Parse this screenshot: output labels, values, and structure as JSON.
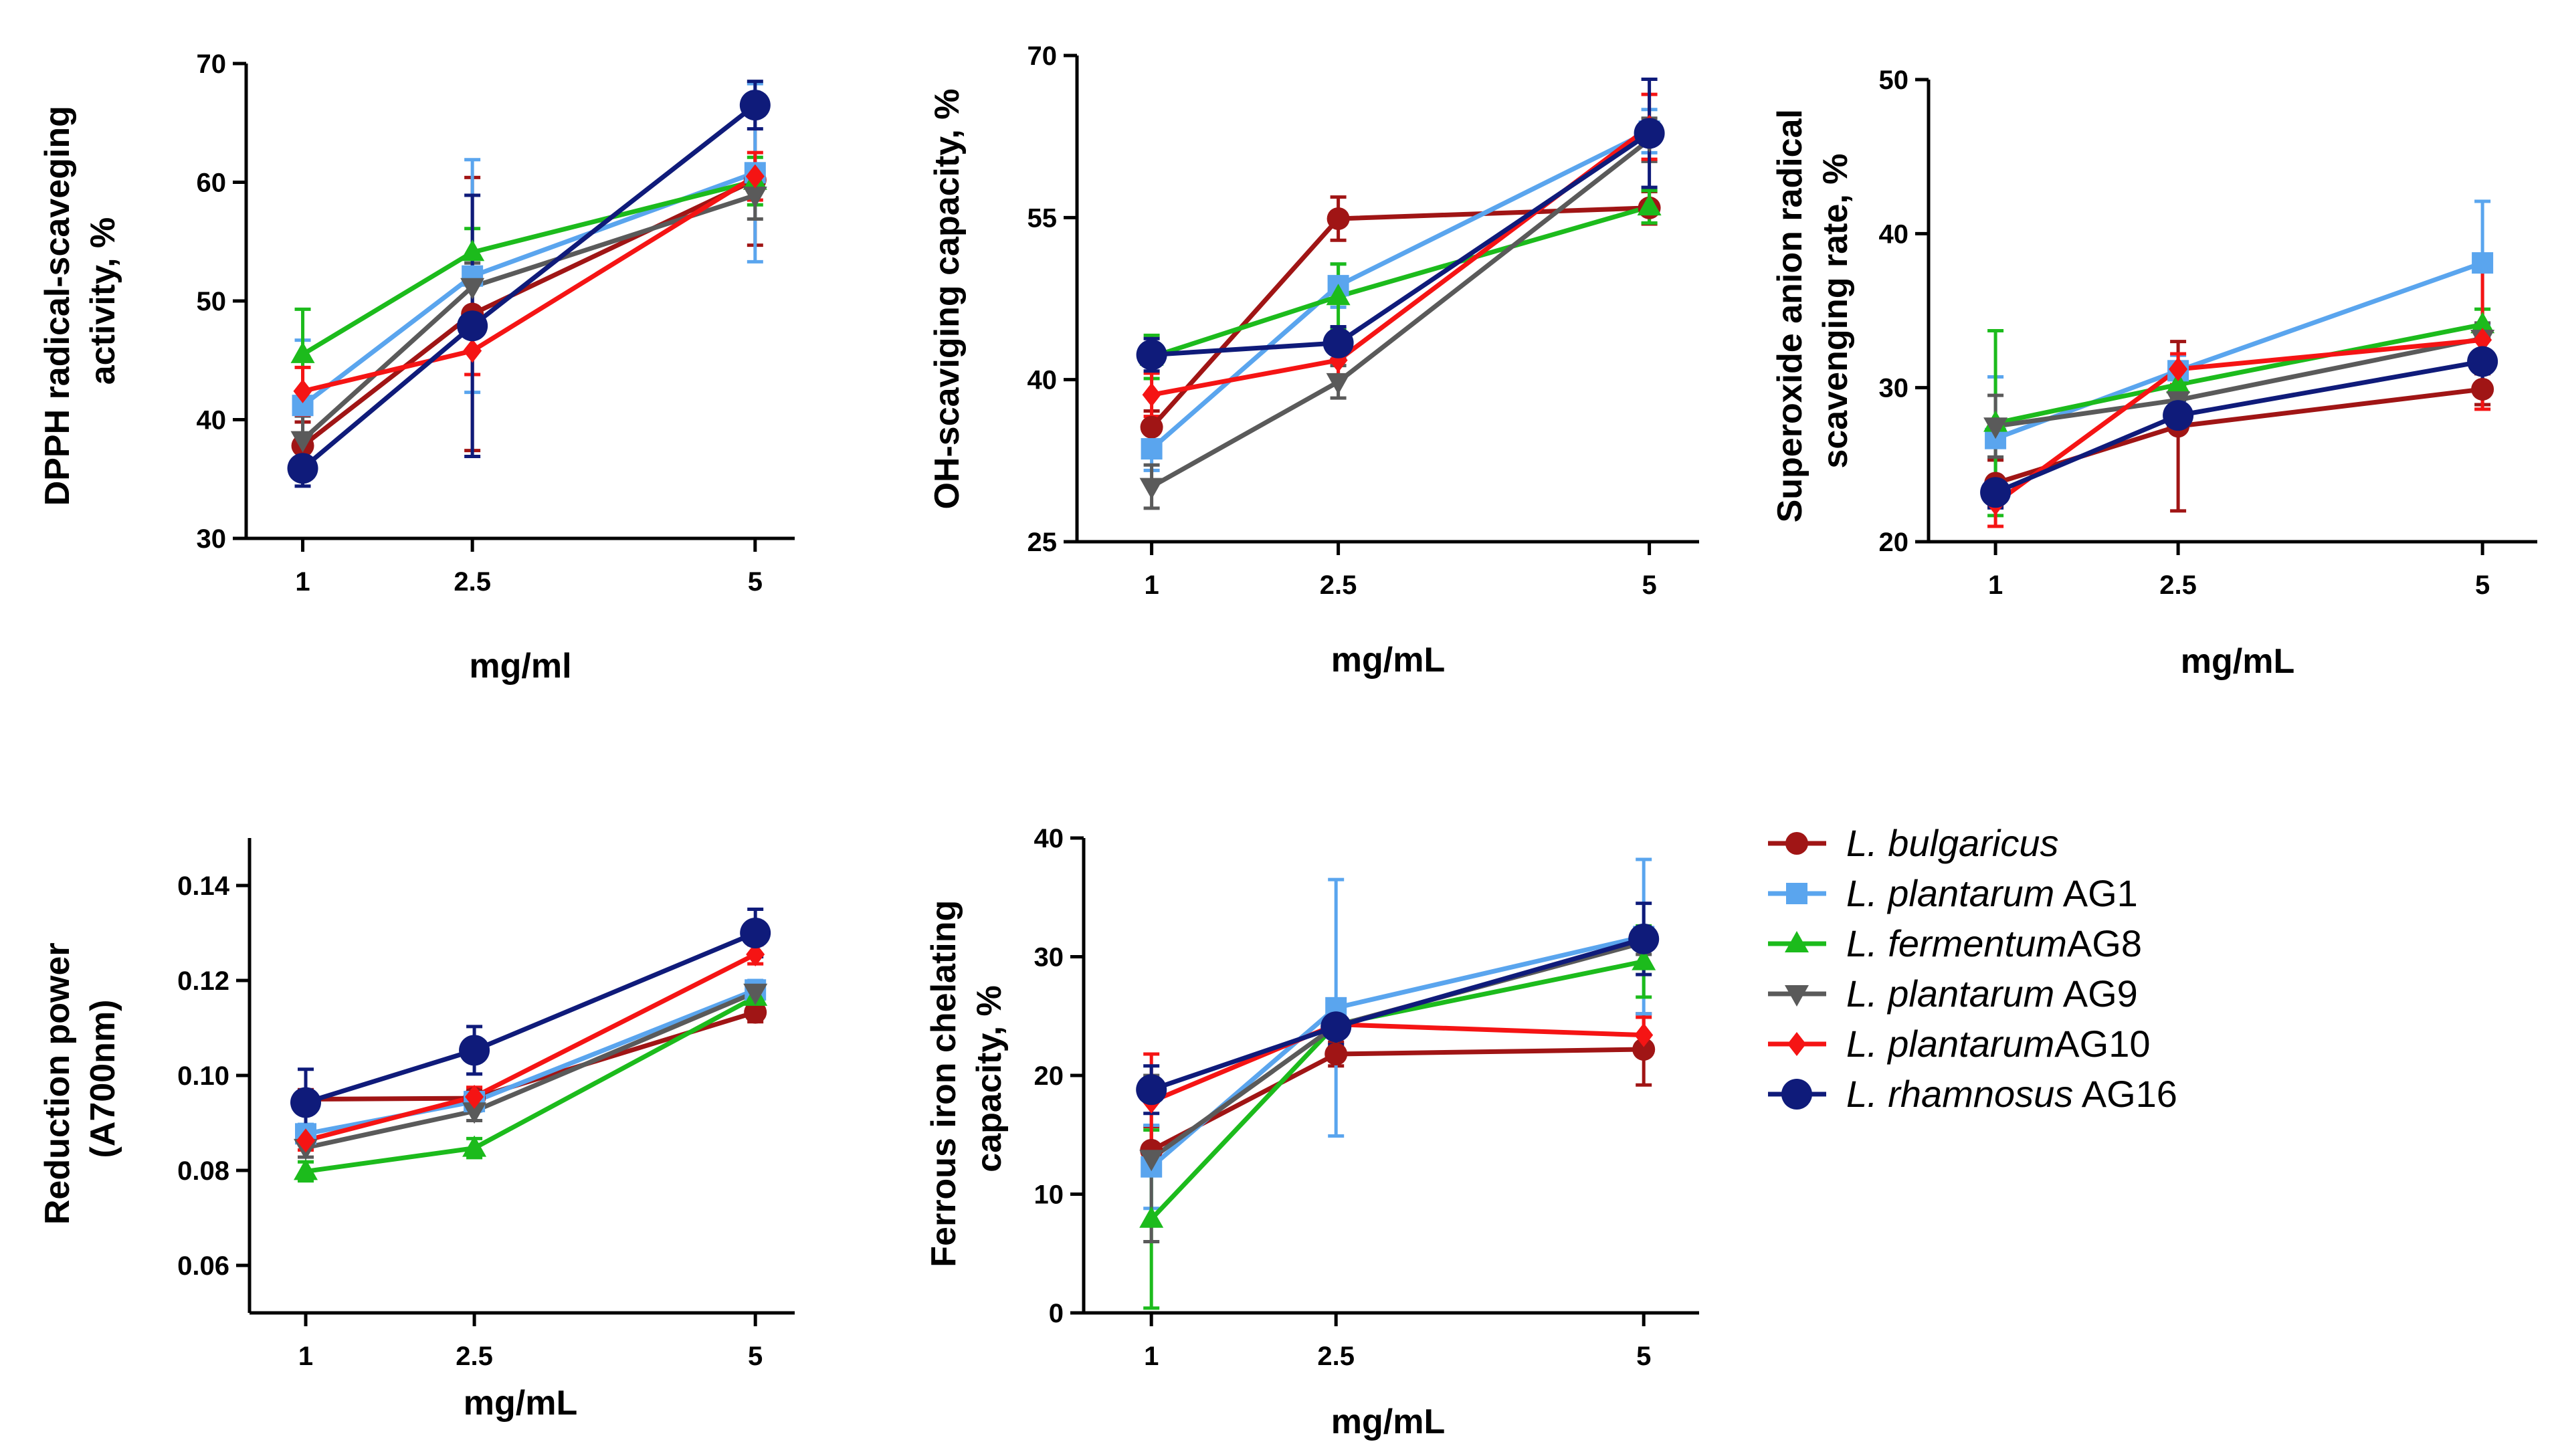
{
  "x_unit_labels": [
    "mg/ml",
    "mg/mL",
    "mg/mL",
    "mg/mL",
    "mg/mL"
  ],
  "legend": [
    {
      "species": "L. bulgaricus",
      "strain": "",
      "color": "#A01515",
      "marker": "circle-small"
    },
    {
      "species": "L. plantarum",
      "strain": " AG1",
      "color": "#5AA5EE",
      "marker": "square"
    },
    {
      "species": "L. fermentum",
      "strain": "AG8",
      "color": "#1CBB1C",
      "marker": "triangle-up"
    },
    {
      "species": "L. plantarum",
      "strain": " AG9",
      "color": "#5A5A5A",
      "marker": "triangle-down"
    },
    {
      "species": "L. plantarum",
      "strain": "AG10",
      "color": "#F51414",
      "marker": "diamond"
    },
    {
      "species": "L. rhamnosus",
      "strain": " AG16",
      "color": "#0F1B7A",
      "marker": "circle-large"
    }
  ],
  "chart_data": [
    {
      "type": "line",
      "title": "",
      "xlabel": "mg/ml",
      "ylabel": [
        "DPPH radical-scaveging",
        "activity, %"
      ],
      "x": [
        1,
        2.5,
        5
      ],
      "x_ticks": [
        "1",
        "2.5",
        "5"
      ],
      "ylim": [
        30,
        70
      ],
      "y_ticks": [
        "30",
        "40",
        "50",
        "60",
        "70"
      ],
      "series": [
        {
          "name": "L. bulgaricus",
          "values": [
            37.8,
            48.9,
            60.2
          ],
          "errors": [
            2.0,
            11.5,
            5.5
          ]
        },
        {
          "name": "L. plantarum AG1",
          "values": [
            41.2,
            52.1,
            60.8
          ],
          "errors": [
            5.5,
            9.8,
            7.5
          ]
        },
        {
          "name": "L. fermentumAG8",
          "values": [
            45.5,
            54.1,
            60.1
          ],
          "errors": [
            3.8,
            2.0,
            2.0
          ]
        },
        {
          "name": "L. plantarum AG9",
          "values": [
            38.3,
            51.2,
            58.9
          ],
          "errors": [
            2.0,
            2.0,
            2.0
          ]
        },
        {
          "name": "L. plantarumAG10",
          "values": [
            42.4,
            45.8,
            60.5
          ],
          "errors": [
            2.0,
            2.0,
            2.0
          ]
        },
        {
          "name": "L. rhamnosus AG16",
          "values": [
            35.9,
            47.9,
            66.5
          ],
          "errors": [
            1.5,
            11.0,
            2.0
          ]
        }
      ]
    },
    {
      "type": "line",
      "title": "",
      "xlabel": "mg/mL",
      "ylabel": [
        "OH-scaviging capacity, %"
      ],
      "x": [
        1,
        2.5,
        5
      ],
      "x_ticks": [
        "1",
        "2.5",
        "5"
      ],
      "ylim": [
        25,
        70
      ],
      "y_ticks": [
        "25",
        "40",
        "55",
        "70"
      ],
      "series": [
        {
          "name": "L. bulgaricus",
          "values": [
            35.6,
            54.9,
            55.9
          ],
          "errors": [
            1.5,
            2.0,
            1.5
          ]
        },
        {
          "name": "L. plantarum AG1",
          "values": [
            33.6,
            48.7,
            63.0
          ],
          "errors": [
            2.0,
            2.0,
            2.0
          ]
        },
        {
          "name": "L. fermentumAG8",
          "values": [
            42.1,
            47.7,
            56.0
          ],
          "errors": [
            2.0,
            3.0,
            1.5
          ]
        },
        {
          "name": "L. plantarum AG9",
          "values": [
            30.1,
            39.8,
            62.2
          ],
          "errors": [
            2.0,
            1.5,
            2.0
          ]
        },
        {
          "name": "L. plantarumAG10",
          "values": [
            38.6,
            41.8,
            63.4
          ],
          "errors": [
            2.0,
            1.5,
            3.0
          ]
        },
        {
          "name": "L. rhamnosus AG16",
          "values": [
            42.3,
            43.4,
            62.8
          ],
          "errors": [
            1.5,
            1.5,
            5.0
          ]
        }
      ]
    },
    {
      "type": "line",
      "title": "",
      "xlabel": "mg/mL",
      "ylabel": [
        "Superoxide anion radical",
        "scavenging rate, %"
      ],
      "x": [
        1,
        2.5,
        5
      ],
      "x_ticks": [
        "1",
        "2.5",
        "5"
      ],
      "ylim": [
        20,
        50
      ],
      "y_ticks": [
        "20",
        "30",
        "40",
        "50"
      ],
      "series": [
        {
          "name": "L. bulgaricus",
          "values": [
            23.8,
            27.5,
            29.9
          ],
          "errors": [
            1.5,
            5.5,
            1.0
          ]
        },
        {
          "name": "L. plantarum AG1",
          "values": [
            26.7,
            31.1,
            38.1
          ],
          "errors": [
            4.0,
            1.0,
            4.0
          ]
        },
        {
          "name": "L. fermentumAG8",
          "values": [
            27.7,
            30.2,
            34.1
          ],
          "errors": [
            6.0,
            1.0,
            1.0
          ]
        },
        {
          "name": "L. plantarum AG9",
          "values": [
            27.5,
            29.2,
            33.2
          ],
          "errors": [
            2.0,
            1.0,
            1.0
          ]
        },
        {
          "name": "L. plantarumAG10",
          "values": [
            22.5,
            31.2,
            33.1
          ],
          "errors": [
            1.5,
            1.0,
            4.5
          ]
        },
        {
          "name": "L. rhamnosus AG16",
          "values": [
            23.2,
            28.2,
            31.7
          ],
          "errors": [
            1.0,
            1.0,
            1.5
          ]
        }
      ]
    },
    {
      "type": "line",
      "title": "",
      "xlabel": "mg/mL",
      "ylabel": [
        "Reduction power",
        "(A700nm)"
      ],
      "x": [
        1,
        2.5,
        5
      ],
      "x_ticks": [
        "1",
        "2.5",
        "5"
      ],
      "ylim": [
        0.05,
        0.15
      ],
      "y_ticks": [
        "0.06",
        "0.08",
        "0.10",
        "0.12",
        "0.14"
      ],
      "y_tick_values": [
        0.06,
        0.08,
        0.1,
        0.12,
        0.14
      ],
      "series": [
        {
          "name": "L. bulgaricus",
          "values": [
            0.095,
            0.0952,
            0.1133
          ],
          "errors": [
            0.002,
            0.002,
            0.002
          ]
        },
        {
          "name": "L. plantarum AG1",
          "values": [
            0.0877,
            0.0945,
            0.118
          ],
          "errors": [
            0.002,
            0.002,
            0.002
          ]
        },
        {
          "name": "L. fermentumAG8",
          "values": [
            0.0798,
            0.0847,
            0.1165
          ],
          "errors": [
            0.002,
            0.002,
            0.002
          ]
        },
        {
          "name": "L. plantarum AG9",
          "values": [
            0.0848,
            0.0925,
            0.1175
          ],
          "errors": [
            0.002,
            0.002,
            0.002
          ]
        },
        {
          "name": "L. plantarumAG10",
          "values": [
            0.0863,
            0.0955,
            0.1255
          ],
          "errors": [
            0.002,
            0.002,
            0.002
          ]
        },
        {
          "name": "L. rhamnosus AG16",
          "values": [
            0.0943,
            0.1053,
            0.13
          ],
          "errors": [
            0.007,
            0.005,
            0.005
          ]
        }
      ]
    },
    {
      "type": "line",
      "title": "",
      "xlabel": "mg/mL",
      "ylabel": [
        "Ferrous iron chelating",
        "capacity, %"
      ],
      "x": [
        1,
        2.5,
        5
      ],
      "x_ticks": [
        "1",
        "2.5",
        "5"
      ],
      "ylim": [
        0,
        40
      ],
      "y_ticks": [
        "0",
        "10",
        "20",
        "30",
        "40"
      ],
      "series": [
        {
          "name": "L. bulgaricus",
          "values": [
            13.7,
            21.8,
            22.2
          ],
          "errors": [
            2.0,
            1.0,
            3.0
          ]
        },
        {
          "name": "L. plantarum AG1",
          "values": [
            12.3,
            25.7,
            31.7
          ],
          "errors": [
            3.5,
            10.8,
            6.5
          ]
        },
        {
          "name": "L. fermentumAG8",
          "values": [
            7.9,
            24.3,
            29.6
          ],
          "errors": [
            7.5,
            2.0,
            3.0
          ]
        },
        {
          "name": "L. plantarum AG9",
          "values": [
            13.0,
            24.2,
            31.2
          ],
          "errors": [
            7.0,
            1.0,
            1.0
          ]
        },
        {
          "name": "L. plantarumAG10",
          "values": [
            17.8,
            24.3,
            23.4
          ],
          "errors": [
            4.0,
            1.0,
            1.5
          ]
        },
        {
          "name": "L. rhamnosus AG16",
          "values": [
            18.8,
            24.1,
            31.5
          ],
          "errors": [
            2.0,
            1.5,
            3.0
          ]
        }
      ]
    }
  ]
}
